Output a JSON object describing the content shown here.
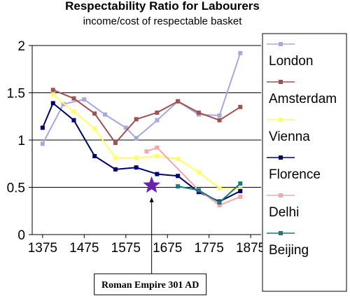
{
  "chart_data": {
    "type": "line",
    "title": "Respectability Ratio for Labourers",
    "subtitle": "income/cost of respectable basket",
    "xlabel": "",
    "ylabel": "",
    "xlim": [
      1350,
      1900
    ],
    "ylim": [
      0,
      2
    ],
    "xticks": [
      1375,
      1475,
      1575,
      1675,
      1775,
      1875
    ],
    "yticks": [
      0,
      0.5,
      1,
      1.5,
      2
    ],
    "ytick_labels": [
      "0",
      "0.5",
      "1",
      "1.5",
      "2"
    ],
    "grid": {
      "horizontal": true,
      "vertical": false
    },
    "legend_position": "right",
    "series": [
      {
        "name": "London",
        "color": "#a8a8e0",
        "marker": "square",
        "points": [
          [
            1375,
            0.96
          ],
          [
            1425,
            1.38
          ],
          [
            1475,
            1.43
          ],
          [
            1525,
            1.27
          ],
          [
            1575,
            1.13
          ],
          [
            1600,
            1.02
          ],
          [
            1650,
            1.21
          ],
          [
            1700,
            1.41
          ],
          [
            1750,
            1.27
          ],
          [
            1800,
            1.26
          ],
          [
            1850,
            1.92
          ]
        ]
      },
      {
        "name": "Amsterdam",
        "color": "#a05050",
        "marker": "square",
        "points": [
          [
            1400,
            1.53
          ],
          [
            1450,
            1.44
          ],
          [
            1500,
            1.28
          ],
          [
            1550,
            0.97
          ],
          [
            1600,
            1.22
          ],
          [
            1650,
            1.29
          ],
          [
            1700,
            1.41
          ],
          [
            1750,
            1.29
          ],
          [
            1800,
            1.21
          ],
          [
            1850,
            1.35
          ]
        ]
      },
      {
        "name": "Vienna",
        "color": "#ffff66",
        "marker": "square",
        "points": [
          [
            1400,
            1.48
          ],
          [
            1450,
            1.3
          ],
          [
            1500,
            1.12
          ],
          [
            1550,
            0.81
          ],
          [
            1600,
            0.81
          ],
          [
            1650,
            0.83
          ],
          [
            1700,
            0.8
          ],
          [
            1750,
            0.66
          ],
          [
            1800,
            0.49
          ],
          [
            1850,
            0.48
          ]
        ]
      },
      {
        "name": "Florence",
        "color": "#000070",
        "marker": "square",
        "points": [
          [
            1375,
            1.13
          ],
          [
            1400,
            1.39
          ],
          [
            1450,
            1.21
          ],
          [
            1500,
            0.83
          ],
          [
            1550,
            0.69
          ],
          [
            1600,
            0.71
          ],
          [
            1650,
            0.64
          ],
          [
            1700,
            0.62
          ],
          [
            1750,
            0.45
          ],
          [
            1800,
            0.35
          ],
          [
            1850,
            0.46
          ]
        ]
      },
      {
        "name": "Delhi",
        "color": "#f2a8a8",
        "marker": "square",
        "points": [
          [
            1625,
            0.88
          ],
          [
            1650,
            0.92
          ],
          [
            1750,
            0.47
          ],
          [
            1800,
            0.31
          ],
          [
            1850,
            0.4
          ]
        ]
      },
      {
        "name": "Beijing",
        "color": "#1a7a7a",
        "marker": "square",
        "points": [
          [
            1700,
            0.51
          ],
          [
            1750,
            0.47
          ],
          [
            1800,
            0.34
          ],
          [
            1850,
            0.54
          ]
        ]
      }
    ],
    "annotations": [
      {
        "label": "Roman Empire 301 AD",
        "x": 1637,
        "y": 0.52,
        "marker": "star",
        "color": "#6a22b0"
      }
    ]
  }
}
